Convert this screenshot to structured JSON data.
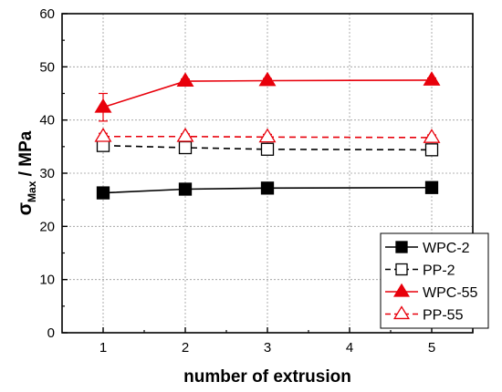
{
  "chart_data": {
    "type": "line",
    "xlabel": "number of extrusion",
    "ylabel_main": "σ",
    "ylabel_sub": "Max",
    "ylabel_unit": " / MPa",
    "xlim": [
      0.5,
      5.5
    ],
    "ylim": [
      0,
      60
    ],
    "xticks": [
      "1",
      "2",
      "3",
      "4",
      "5"
    ],
    "yticks": [
      "0",
      "10",
      "20",
      "30",
      "40",
      "50",
      "60"
    ],
    "grid": true,
    "legend_position": "bottom-right",
    "series": [
      {
        "name": "WPC-2",
        "color": "#000000",
        "marker": "filled-square",
        "line": "solid",
        "points": [
          {
            "x": 1,
            "y": 26.3,
            "err": 0.4
          },
          {
            "x": 2,
            "y": 27.0,
            "err": 0.3
          },
          {
            "x": 3,
            "y": 27.2,
            "err": 0.3
          },
          {
            "x": 5,
            "y": 27.3,
            "err": 0.3
          }
        ]
      },
      {
        "name": "PP-2",
        "color": "#000000",
        "marker": "open-square",
        "line": "dashed",
        "points": [
          {
            "x": 1,
            "y": 35.2,
            "err": 0.5
          },
          {
            "x": 2,
            "y": 34.8,
            "err": 0.4
          },
          {
            "x": 3,
            "y": 34.5,
            "err": 0.4
          },
          {
            "x": 5,
            "y": 34.4,
            "err": 0.4
          }
        ]
      },
      {
        "name": "WPC-55",
        "color": "#e8000b",
        "marker": "filled-triangle",
        "line": "solid",
        "points": [
          {
            "x": 1,
            "y": 42.4,
            "err": 2.6
          },
          {
            "x": 2,
            "y": 47.3,
            "err": 0.4
          },
          {
            "x": 3,
            "y": 47.4,
            "err": 0.4
          },
          {
            "x": 5,
            "y": 47.5,
            "err": 0.4
          }
        ]
      },
      {
        "name": "PP-55",
        "color": "#e8000b",
        "marker": "open-triangle",
        "line": "dashed",
        "points": [
          {
            "x": 1,
            "y": 36.9,
            "err": 0.6
          },
          {
            "x": 2,
            "y": 36.9,
            "err": 0.5
          },
          {
            "x": 3,
            "y": 36.8,
            "err": 0.5
          },
          {
            "x": 5,
            "y": 36.7,
            "err": 0.5
          }
        ]
      }
    ]
  }
}
